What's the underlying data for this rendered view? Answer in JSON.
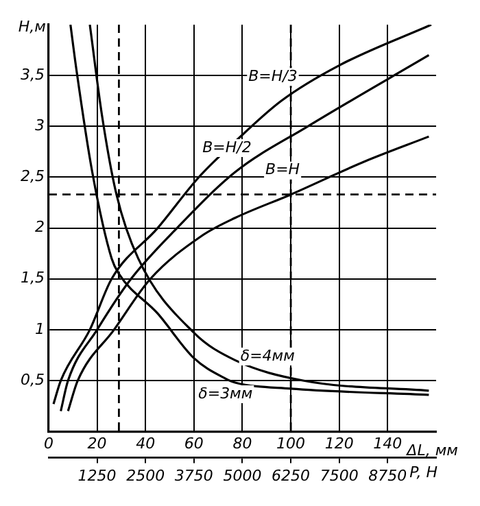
{
  "chart_data": {
    "type": "line",
    "xlabel": "ΔL, мм",
    "ylabel": "Н,м",
    "x2label": "P, Н",
    "xlim": [
      0,
      160
    ],
    "xticks": [
      0,
      20,
      40,
      60,
      80,
      100,
      120,
      140
    ],
    "x2lim": [
      0,
      10000
    ],
    "x2ticks": [
      1250,
      2500,
      3750,
      5000,
      6250,
      7500,
      8750
    ],
    "ylim": [
      0,
      4
    ],
    "yticks": [
      {
        "value": 0.5,
        "label": "0,5"
      },
      1,
      {
        "value": 1.5,
        "label": "1,5"
      },
      2,
      {
        "value": 2.5,
        "label": "2,5"
      },
      3,
      {
        "value": 3.5,
        "label": "3,5"
      }
    ],
    "grid": true,
    "legend": false,
    "marker": "none",
    "line_style": "solid",
    "ref_lines": [
      {
        "axis": "y",
        "value": 2.33,
        "line_style": "dashed"
      },
      {
        "axis": "x",
        "value": 29,
        "line_style": "dashed"
      },
      {
        "axis": "x",
        "value": 100,
        "line_style": "dashed"
      }
    ],
    "series": [
      {
        "name": "В=Н/3",
        "color": "#000000",
        "x": [
          2,
          5,
          17,
          26,
          45,
          62,
          77,
          96,
          120,
          158
        ],
        "values": [
          0.27,
          0.5,
          1,
          1.5,
          2,
          2.5,
          2.85,
          3.25,
          3.6,
          4.0
        ]
      },
      {
        "name": "В=Н/2",
        "color": "#000000",
        "x": [
          5,
          8,
          20,
          34,
          53,
          77,
          107,
          157
        ],
        "values": [
          0.2,
          0.5,
          1,
          1.5,
          2,
          2.55,
          3.0,
          3.7
        ]
      },
      {
        "name": "В=Н",
        "color": "#000000",
        "x": [
          8,
          12,
          27,
          42,
          63,
          77,
          100,
          130,
          157
        ],
        "values": [
          0.2,
          0.5,
          1,
          1.5,
          1.92,
          2.1,
          2.33,
          2.65,
          2.9
        ]
      },
      {
        "name": "δ=4мм",
        "color": "#000000",
        "x": [
          17,
          22,
          28,
          37,
          60,
          77,
          105,
          157
        ],
        "values": [
          4.0,
          3.11,
          2.33,
          1.7,
          0.97,
          0.7,
          0.5,
          0.4
        ]
      },
      {
        "name": "δ=3мм",
        "color": "#000000",
        "x": [
          9,
          11.5,
          18,
          26,
          29,
          45,
          60,
          73,
          77,
          100,
          157
        ],
        "values": [
          4.0,
          3.55,
          2.55,
          1.7,
          1.55,
          1.16,
          0.72,
          0.52,
          0.48,
          0.42,
          0.36
        ]
      }
    ]
  }
}
